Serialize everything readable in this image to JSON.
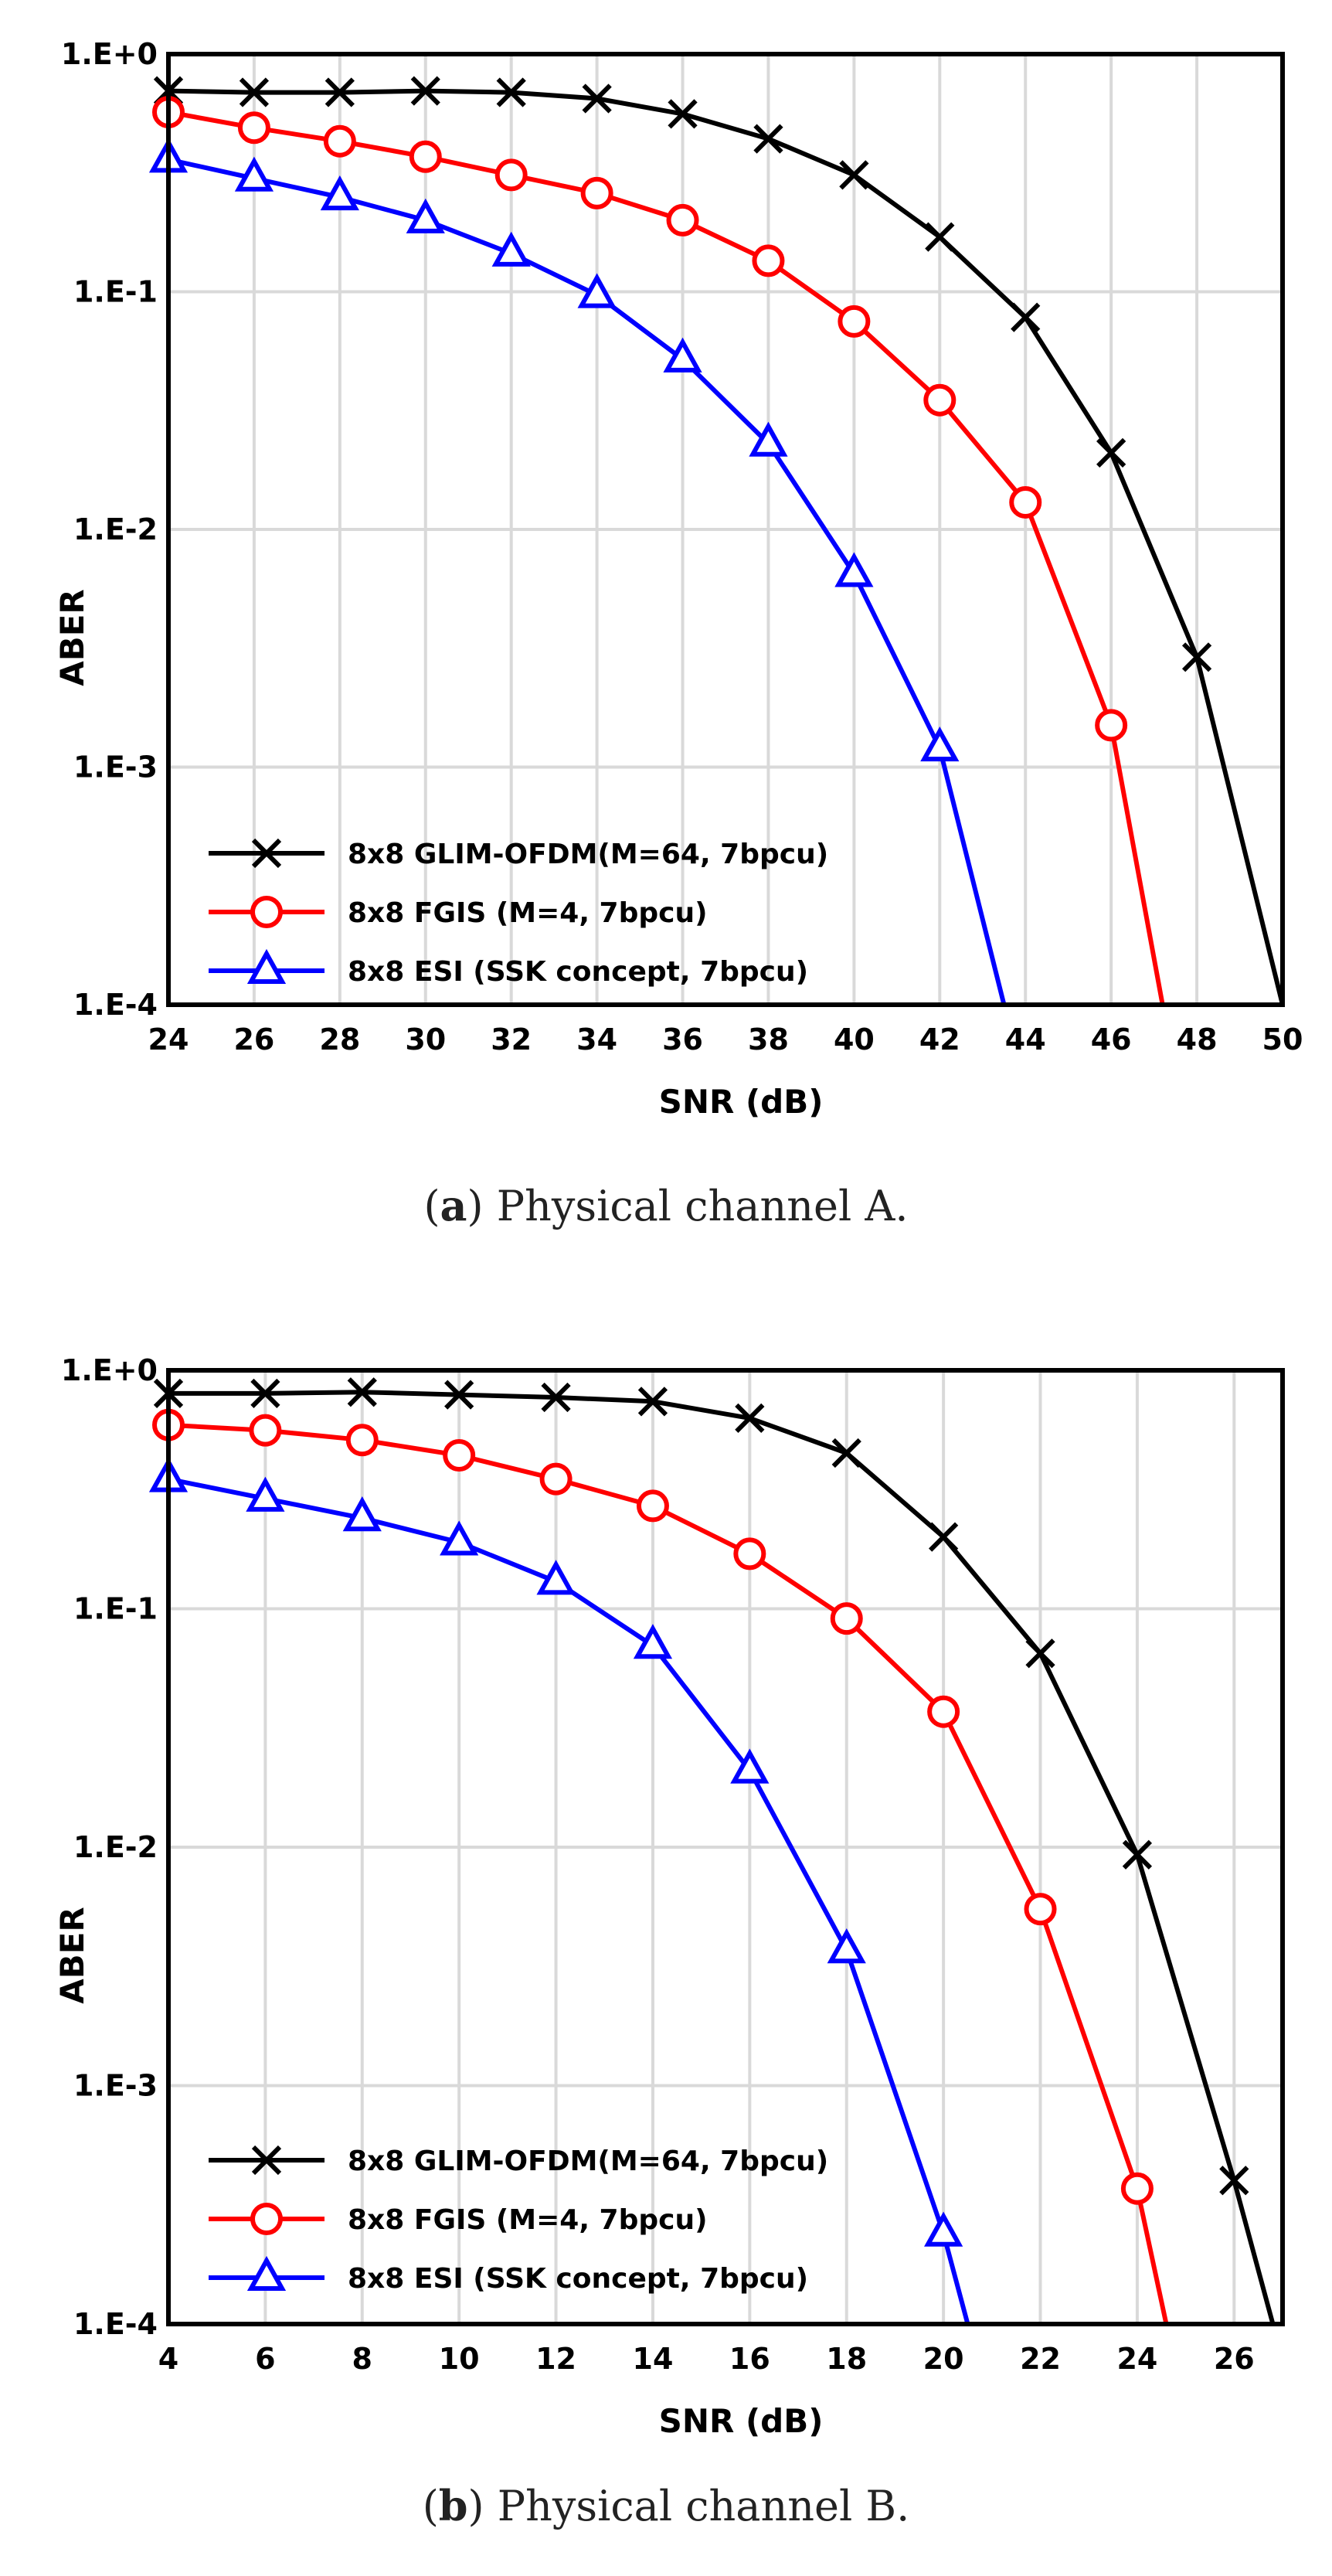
{
  "colors": {
    "grid": "#d9d9d9",
    "frame": "#000000",
    "series_black": "#000000",
    "series_red": "#ff0000",
    "series_blue": "#0000ff"
  },
  "chart_data": [
    {
      "id": "a",
      "type": "line",
      "yscale": "log",
      "title": "",
      "xlabel": "SNR (dB)",
      "ylabel": "ABER",
      "xlim": [
        24,
        50
      ],
      "ylim": [
        0.0001,
        1
      ],
      "xticks": [
        24,
        26,
        28,
        30,
        32,
        34,
        36,
        38,
        40,
        42,
        44,
        46,
        48,
        50
      ],
      "xtick_labels": [
        "24",
        "26",
        "28",
        "30",
        "32",
        "34",
        "36",
        "38",
        "40",
        "42",
        "44",
        "46",
        "48",
        "50"
      ],
      "yticks": [
        1,
        0.1,
        0.01,
        0.001,
        0.0001
      ],
      "ytick_labels": [
        "1.E+0",
        "1.E-1",
        "1.E-2",
        "1.E-3",
        "1.E-4"
      ],
      "grid": true,
      "legend_position": "bottom-left",
      "caption": {
        "letter": "a",
        "text": " Physical channel A."
      },
      "series": [
        {
          "name": "8x8 GLIM-OFDM(M=64, 7bpcu)",
          "color": "#000000",
          "marker": "x",
          "x": [
            24,
            26,
            28,
            30,
            32,
            34,
            36,
            38,
            40,
            42,
            44,
            46,
            48,
            50
          ],
          "y": [
            0.7,
            0.69,
            0.69,
            0.7,
            0.69,
            0.65,
            0.56,
            0.44,
            0.31,
            0.17,
            0.078,
            0.021,
            0.0029,
            0.0001
          ],
          "marked": [
            true,
            true,
            true,
            true,
            true,
            true,
            true,
            true,
            true,
            true,
            true,
            true,
            true,
            false
          ]
        },
        {
          "name": "8x8 FGIS (M=4, 7bpcu)",
          "color": "#ff0000",
          "marker": "circle",
          "x": [
            24,
            26,
            28,
            30,
            32,
            34,
            36,
            38,
            40,
            42,
            44,
            46,
            47.2
          ],
          "y": [
            0.57,
            0.49,
            0.43,
            0.37,
            0.31,
            0.26,
            0.2,
            0.135,
            0.075,
            0.035,
            0.013,
            0.0015,
            0.0001
          ],
          "marked": [
            true,
            true,
            true,
            true,
            true,
            true,
            true,
            true,
            true,
            true,
            true,
            true,
            false
          ]
        },
        {
          "name": "8x8  ESI (SSK concept, 7bpcu)",
          "color": "#0000ff",
          "marker": "triangle",
          "x": [
            24,
            26,
            28,
            30,
            32,
            34,
            36,
            38,
            40,
            42,
            43.5
          ],
          "y": [
            0.36,
            0.3,
            0.25,
            0.2,
            0.145,
            0.097,
            0.052,
            0.023,
            0.0065,
            0.0012,
            0.0001
          ],
          "marked": [
            true,
            true,
            true,
            true,
            true,
            true,
            true,
            true,
            true,
            true,
            false
          ]
        }
      ]
    },
    {
      "id": "b",
      "type": "line",
      "yscale": "log",
      "title": "",
      "xlabel": "SNR (dB)",
      "ylabel": "ABER",
      "xlim": [
        4,
        27
      ],
      "ylim": [
        0.0001,
        1
      ],
      "xticks": [
        4,
        6,
        8,
        10,
        12,
        14,
        16,
        18,
        20,
        22,
        24,
        26
      ],
      "xtick_labels": [
        "4",
        "6",
        "8",
        "10",
        "12",
        "14",
        "16",
        "18",
        "20",
        "22",
        "24",
        "26"
      ],
      "yticks": [
        1,
        0.1,
        0.01,
        0.001,
        0.0001
      ],
      "ytick_labels": [
        "1.E+0",
        "1.E-1",
        "1.E-2",
        "1.E-3",
        "1.E-4"
      ],
      "grid": true,
      "legend_position": "bottom-left",
      "caption": {
        "letter": "b",
        "text": " Physical channel B."
      },
      "series": [
        {
          "name": "8x8 GLIM-OFDM(M=64, 7bpcu)",
          "color": "#000000",
          "marker": "x",
          "x": [
            4,
            6,
            8,
            10,
            12,
            14,
            16,
            18,
            20,
            22,
            24,
            26,
            26.8
          ],
          "y": [
            0.8,
            0.8,
            0.81,
            0.79,
            0.77,
            0.74,
            0.63,
            0.45,
            0.2,
            0.065,
            0.0093,
            0.0004,
            0.0001
          ],
          "marked": [
            true,
            true,
            true,
            true,
            true,
            true,
            true,
            true,
            true,
            true,
            true,
            true,
            false
          ]
        },
        {
          "name": "8x8 FGIS (M=4, 7bpcu)",
          "color": "#ff0000",
          "marker": "circle",
          "x": [
            4,
            6,
            8,
            10,
            12,
            14,
            16,
            18,
            20,
            22,
            24,
            24.6
          ],
          "y": [
            0.59,
            0.56,
            0.51,
            0.44,
            0.35,
            0.27,
            0.17,
            0.091,
            0.037,
            0.0055,
            0.00037,
            0.0001
          ],
          "marked": [
            true,
            true,
            true,
            true,
            true,
            true,
            true,
            true,
            true,
            true,
            true,
            false
          ]
        },
        {
          "name": "8x8 ESI (SSK concept, 7bpcu)",
          "color": "#0000ff",
          "marker": "triangle",
          "x": [
            4,
            6,
            8,
            10,
            12,
            14,
            16,
            18,
            20,
            20.5
          ],
          "y": [
            0.35,
            0.29,
            0.24,
            0.19,
            0.13,
            0.07,
            0.021,
            0.0037,
            0.00024,
            0.0001
          ],
          "marked": [
            true,
            true,
            true,
            true,
            true,
            true,
            true,
            true,
            true,
            false
          ]
        }
      ]
    }
  ]
}
